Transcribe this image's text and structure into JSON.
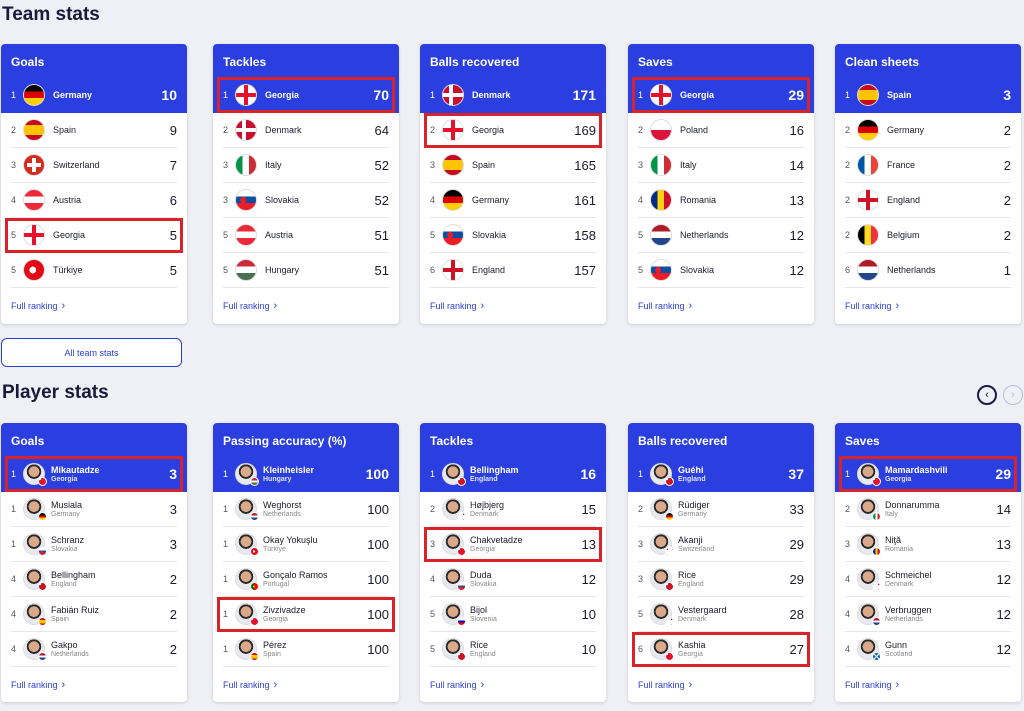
{
  "team_section_title": "Team stats",
  "player_section_title": "Player stats",
  "full_ranking_label": "Full ranking",
  "all_team_stats_label": "All team stats",
  "colors": {
    "brand": "#2b3ee0",
    "highlight": "#d8232a",
    "background": "#eef0f5"
  },
  "team_cards": [
    {
      "title": "Goals",
      "rows": [
        {
          "rank": "1",
          "name": "Germany",
          "value": "10",
          "flag": "germany"
        },
        {
          "rank": "2",
          "name": "Spain",
          "value": "9",
          "flag": "spain"
        },
        {
          "rank": "3",
          "name": "Switzerland",
          "value": "7",
          "flag": "switzerland"
        },
        {
          "rank": "4",
          "name": "Austria",
          "value": "6",
          "flag": "austria"
        },
        {
          "rank": "5",
          "name": "Georgia",
          "value": "5",
          "flag": "georgia"
        },
        {
          "rank": "5",
          "name": "Türkiye",
          "value": "5",
          "flag": "turkiye"
        }
      ]
    },
    {
      "title": "Tackles",
      "rows": [
        {
          "rank": "1",
          "name": "Georgia",
          "value": "70",
          "flag": "georgia"
        },
        {
          "rank": "2",
          "name": "Denmark",
          "value": "64",
          "flag": "denmark"
        },
        {
          "rank": "3",
          "name": "Italy",
          "value": "52",
          "flag": "italy"
        },
        {
          "rank": "3",
          "name": "Slovakia",
          "value": "52",
          "flag": "slovakia"
        },
        {
          "rank": "5",
          "name": "Austria",
          "value": "51",
          "flag": "austria"
        },
        {
          "rank": "5",
          "name": "Hungary",
          "value": "51",
          "flag": "hungary"
        }
      ]
    },
    {
      "title": "Balls recovered",
      "rows": [
        {
          "rank": "1",
          "name": "Denmark",
          "value": "171",
          "flag": "denmark"
        },
        {
          "rank": "2",
          "name": "Georgia",
          "value": "169",
          "flag": "georgia"
        },
        {
          "rank": "3",
          "name": "Spain",
          "value": "165",
          "flag": "spain"
        },
        {
          "rank": "4",
          "name": "Germany",
          "value": "161",
          "flag": "germany"
        },
        {
          "rank": "5",
          "name": "Slovakia",
          "value": "158",
          "flag": "slovakia"
        },
        {
          "rank": "6",
          "name": "England",
          "value": "157",
          "flag": "england"
        }
      ]
    },
    {
      "title": "Saves",
      "rows": [
        {
          "rank": "1",
          "name": "Georgia",
          "value": "29",
          "flag": "georgia"
        },
        {
          "rank": "2",
          "name": "Poland",
          "value": "16",
          "flag": "poland"
        },
        {
          "rank": "3",
          "name": "Italy",
          "value": "14",
          "flag": "italy"
        },
        {
          "rank": "4",
          "name": "Romania",
          "value": "13",
          "flag": "romania"
        },
        {
          "rank": "5",
          "name": "Netherlands",
          "value": "12",
          "flag": "netherlands"
        },
        {
          "rank": "5",
          "name": "Slovakia",
          "value": "12",
          "flag": "slovakia"
        }
      ]
    },
    {
      "title": "Clean sheets",
      "rows": [
        {
          "rank": "1",
          "name": "Spain",
          "value": "3",
          "flag": "spain"
        },
        {
          "rank": "2",
          "name": "Germany",
          "value": "2",
          "flag": "germany"
        },
        {
          "rank": "2",
          "name": "France",
          "value": "2",
          "flag": "france"
        },
        {
          "rank": "2",
          "name": "England",
          "value": "2",
          "flag": "england"
        },
        {
          "rank": "2",
          "name": "Belgium",
          "value": "2",
          "flag": "belgium"
        },
        {
          "rank": "6",
          "name": "Netherlands",
          "value": "1",
          "flag": "netherlands"
        }
      ]
    }
  ],
  "player_cards": [
    {
      "title": "Goals",
      "rows": [
        {
          "rank": "1",
          "name": "Mikautadze",
          "team": "Georgia",
          "value": "3",
          "flag": "georgia"
        },
        {
          "rank": "1",
          "name": "Musiala",
          "team": "Germany",
          "value": "3",
          "flag": "germany"
        },
        {
          "rank": "1",
          "name": "Schranz",
          "team": "Slovakia",
          "value": "3",
          "flag": "slovakia"
        },
        {
          "rank": "4",
          "name": "Bellingham",
          "team": "England",
          "value": "2",
          "flag": "england"
        },
        {
          "rank": "4",
          "name": "Fabián Ruiz",
          "team": "Spain",
          "value": "2",
          "flag": "spain"
        },
        {
          "rank": "4",
          "name": "Gakpo",
          "team": "Netherlands",
          "value": "2",
          "flag": "netherlands"
        }
      ]
    },
    {
      "title": "Passing accuracy (%)",
      "rows": [
        {
          "rank": "1",
          "name": "Kleinheisler",
          "team": "Hungary",
          "value": "100",
          "flag": "hungary"
        },
        {
          "rank": "1",
          "name": "Weghorst",
          "team": "Netherlands",
          "value": "100",
          "flag": "netherlands"
        },
        {
          "rank": "1",
          "name": "Okay Yokuşlu",
          "team": "Türkiye",
          "value": "100",
          "flag": "turkiye"
        },
        {
          "rank": "1",
          "name": "Gonçalo Ramos",
          "team": "Portugal",
          "value": "100",
          "flag": "portugal"
        },
        {
          "rank": "1",
          "name": "Zivzivadze",
          "team": "Georgia",
          "value": "100",
          "flag": "georgia"
        },
        {
          "rank": "1",
          "name": "Pérez",
          "team": "Spain",
          "value": "100",
          "flag": "spain"
        }
      ]
    },
    {
      "title": "Tackles",
      "rows": [
        {
          "rank": "1",
          "name": "Bellingham",
          "team": "England",
          "value": "16",
          "flag": "england"
        },
        {
          "rank": "2",
          "name": "Højbjerg",
          "team": "Denmark",
          "value": "15",
          "flag": "denmark"
        },
        {
          "rank": "3",
          "name": "Chakvetadze",
          "team": "Georgia",
          "value": "13",
          "flag": "georgia"
        },
        {
          "rank": "4",
          "name": "Duda",
          "team": "Slovakia",
          "value": "12",
          "flag": "slovakia"
        },
        {
          "rank": "5",
          "name": "Bijol",
          "team": "Slovenia",
          "value": "10",
          "flag": "slovenia"
        },
        {
          "rank": "5",
          "name": "Rice",
          "team": "England",
          "value": "10",
          "flag": "england"
        }
      ]
    },
    {
      "title": "Balls recovered",
      "rows": [
        {
          "rank": "1",
          "name": "Guéhi",
          "team": "England",
          "value": "37",
          "flag": "england"
        },
        {
          "rank": "2",
          "name": "Rüdiger",
          "team": "Germany",
          "value": "33",
          "flag": "germany"
        },
        {
          "rank": "3",
          "name": "Akanji",
          "team": "Switzerland",
          "value": "29",
          "flag": "switzerland"
        },
        {
          "rank": "3",
          "name": "Rice",
          "team": "England",
          "value": "29",
          "flag": "england"
        },
        {
          "rank": "5",
          "name": "Vestergaard",
          "team": "Denmark",
          "value": "28",
          "flag": "denmark"
        },
        {
          "rank": "6",
          "name": "Kashia",
          "team": "Georgia",
          "value": "27",
          "flag": "georgia"
        }
      ]
    },
    {
      "title": "Saves",
      "rows": [
        {
          "rank": "1",
          "name": "Mamardashvili",
          "team": "Georgia",
          "value": "29",
          "flag": "georgia"
        },
        {
          "rank": "2",
          "name": "Donnarumma",
          "team": "Italy",
          "value": "14",
          "flag": "italy"
        },
        {
          "rank": "3",
          "name": "Niţă",
          "team": "Romania",
          "value": "13",
          "flag": "romania"
        },
        {
          "rank": "4",
          "name": "Schmeichel",
          "team": "Denmark",
          "value": "12",
          "flag": "denmark"
        },
        {
          "rank": "4",
          "name": "Verbruggen",
          "team": "Netherlands",
          "value": "12",
          "flag": "netherlands"
        },
        {
          "rank": "4",
          "name": "Gunn",
          "team": "Scotland",
          "value": "12",
          "flag": "scotland"
        }
      ]
    }
  ]
}
